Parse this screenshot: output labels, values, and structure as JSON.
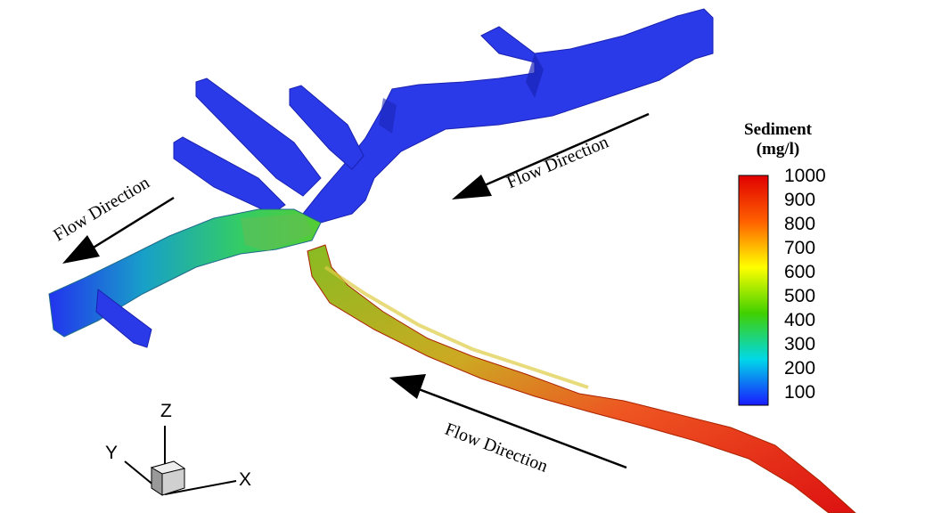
{
  "flow_labels": [
    "Flow Direction",
    "Flow Direction",
    "Flow Direction"
  ],
  "legend": {
    "title_line1": "Sediment",
    "title_line2": "(mg/l)",
    "ticks": [
      "1000",
      "900",
      "800",
      "700",
      "600",
      "500",
      "400",
      "300",
      "200",
      "100"
    ],
    "colors": [
      "#e00000",
      "#ff8000",
      "#ffff00",
      "#40d000",
      "#00e0e0",
      "#2020ff"
    ]
  },
  "axes": {
    "x": "X",
    "y": "Y",
    "z": "Z"
  }
}
